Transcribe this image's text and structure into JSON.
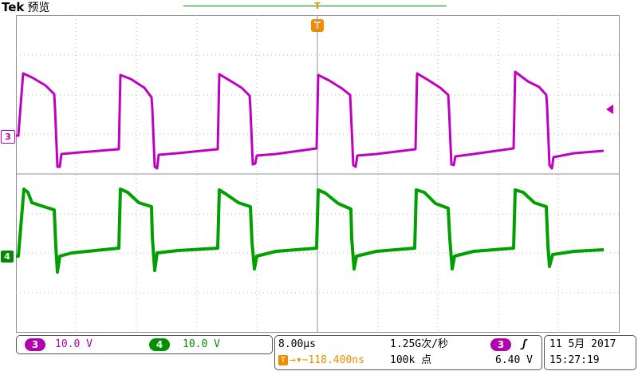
{
  "header": {
    "brand": "Tek",
    "mode": "预览"
  },
  "trigger": {
    "top_marker": "T",
    "box_label": "T"
  },
  "channels": {
    "ch3": {
      "marker": "3",
      "badge": "3",
      "scale": "10.0 V",
      "color": "#b000b0"
    },
    "ch4": {
      "marker": "4",
      "badge": "4",
      "scale": "10.0 V",
      "color": "#009000"
    }
  },
  "timebase": {
    "scale": "8.00µs",
    "sample_rate": "1.25G次/秒",
    "record_length": "100k 点",
    "trigger_offset": "−118.400ns",
    "trigger_source": "3",
    "trigger_level": "6.40 V",
    "trigger_slope_icon": "rising-edge-icon"
  },
  "datetime": {
    "date": "11 5月  2017",
    "time": "15:27:19"
  },
  "colors": {
    "accent": "#f08c00",
    "grid": "#a0a0a0"
  }
}
